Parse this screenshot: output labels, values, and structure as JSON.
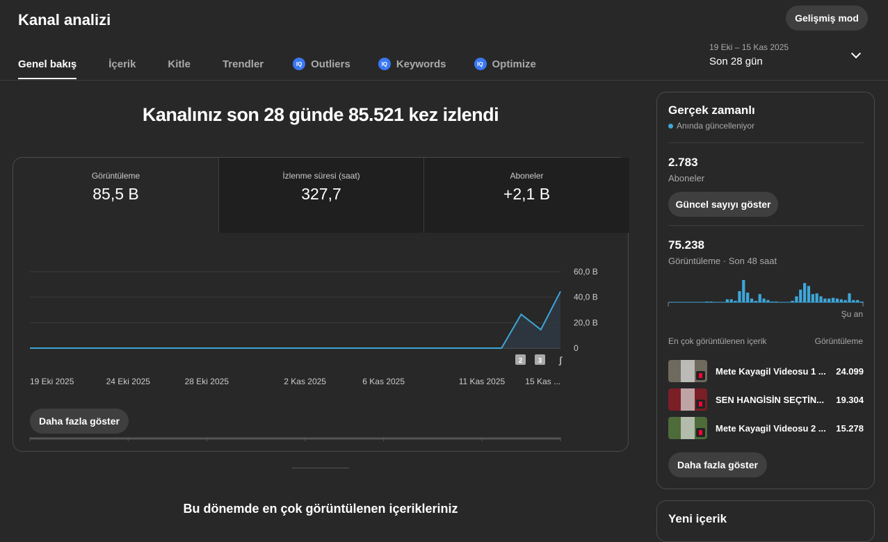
{
  "header": {
    "title": "Kanal analizi",
    "advanced_mode": "Gelişmiş mod",
    "date_range": "19 Eki – 15 Kas 2025",
    "period": "Son 28 gün"
  },
  "tabs": [
    {
      "label": "Genel bakış",
      "active": true
    },
    {
      "label": "İçerik"
    },
    {
      "label": "Kitle"
    },
    {
      "label": "Trendler"
    },
    {
      "label": "Outliers",
      "icon": "vidiq-icon"
    },
    {
      "label": "Keywords",
      "icon": "vidiq-icon"
    },
    {
      "label": "Optimize",
      "icon": "vidiq-icon"
    }
  ],
  "main": {
    "headline": "Kanalınız son 28 günde 85.521 kez izlendi",
    "metrics": [
      {
        "label": "Görüntüleme",
        "value": "85,5 B"
      },
      {
        "label": "İzlenme süresi (saat)",
        "value": "327,7"
      },
      {
        "label": "Aboneler",
        "value": "+2,1 B"
      }
    ],
    "show_more": "Daha fazla göster",
    "bottom_heading": "Bu dönemde en çok görüntülenen içerikleriniz",
    "markers": [
      "2",
      "3"
    ]
  },
  "chart_data": {
    "type": "area",
    "x_tick_labels": [
      "19 Eki 2025",
      "24 Eki 2025",
      "28 Eki 2025",
      "2 Kas 2025",
      "6 Kas 2025",
      "11 Kas 2025",
      "15 Kas ..."
    ],
    "y_tick_labels": [
      "60,0 B",
      "40,0 B",
      "20,0 B",
      "0"
    ],
    "ylim": [
      0,
      60
    ],
    "unit": "B (thousands)",
    "grid": true,
    "color": "#3ea6d8",
    "x": [
      "19 Eki",
      "20 Eki",
      "21 Eki",
      "22 Eki",
      "23 Eki",
      "24 Eki",
      "25 Eki",
      "26 Eki",
      "27 Eki",
      "28 Eki",
      "29 Eki",
      "30 Eki",
      "31 Eki",
      "1 Kas",
      "2 Kas",
      "3 Kas",
      "4 Kas",
      "5 Kas",
      "6 Kas",
      "7 Kas",
      "8 Kas",
      "9 Kas",
      "10 Kas",
      "11 Kas",
      "12 Kas",
      "13 Kas",
      "14 Kas",
      "15 Kas"
    ],
    "values": [
      0,
      0,
      0,
      0,
      0,
      0,
      0,
      0,
      0,
      0,
      0,
      0,
      0,
      0,
      0,
      0,
      0,
      0,
      0,
      0,
      0,
      0,
      0,
      0,
      0,
      26.5,
      14.5,
      44.5
    ]
  },
  "realtime": {
    "title": "Gerçek zamanlı",
    "status": "Anında güncelleniyor",
    "subscribers": "2.783",
    "subscribers_label": "Aboneler",
    "show_count": "Güncel sayıyı göster",
    "views": "75.238",
    "views_label": "Görüntüleme · Son 48 saat",
    "now_label": "Şu an",
    "hourly_views_relative": [
      0,
      0,
      0,
      0,
      0,
      0,
      0,
      0,
      0,
      1,
      1,
      0,
      0,
      0,
      4,
      4,
      2,
      15,
      30,
      13,
      5,
      2,
      11,
      5,
      3,
      1,
      1,
      0,
      0,
      0,
      2,
      8,
      17,
      26,
      22,
      11,
      12,
      8,
      5,
      5,
      6,
      5,
      4,
      3,
      12,
      3,
      3,
      1
    ],
    "top_header": "En çok görüntülenen içerik",
    "top_col": "Görüntüleme",
    "top": [
      {
        "title": "Mete Kayagil Videosu 1 ...",
        "views": "24.099",
        "color": "#6e6a5e"
      },
      {
        "title": "SEN HANGİSİN SEÇTİN...",
        "views": "19.304",
        "color": "#7a1f26"
      },
      {
        "title": "Mete Kayagil Videosu 2 ...",
        "views": "15.278",
        "color": "#4e6b3a"
      }
    ],
    "show_more": "Daha fazla göster",
    "next_card_title": "Yeni içerik"
  }
}
